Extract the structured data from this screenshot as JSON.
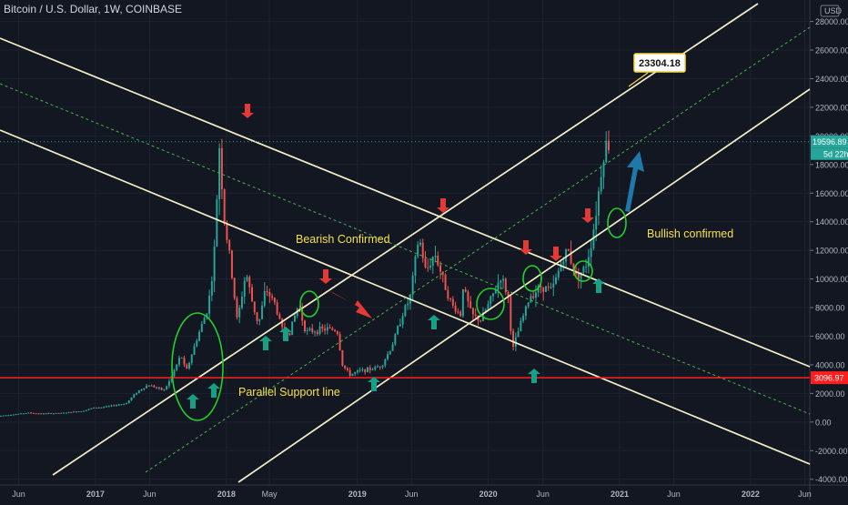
{
  "header": {
    "symbol_title": "Bitcoin / U.S. Dollar, 1W, COINBASE"
  },
  "currency_label": "USD",
  "colors": {
    "background": "#131722",
    "up": "#26a69a",
    "down": "#ef5350",
    "trendline": "#f5efc8",
    "dashed": "#4caf50",
    "support": "#ff1f1f",
    "annotation_text": "#f5e04a",
    "circle": "#22d02c",
    "arrow_up": "#16a085",
    "arrow_down": "#e53935",
    "callout_border": "#f5d442"
  },
  "chart_data": {
    "type": "candlestick",
    "title": "Bitcoin / U.S. Dollar, 1W, COINBASE",
    "y_axis": {
      "ticks": [
        28000,
        26000,
        24000,
        22000,
        20000,
        18000,
        16000,
        14000,
        12000,
        10000,
        8000,
        6000,
        4000,
        2000,
        0,
        -2000,
        -4000
      ],
      "tick_labels": [
        "28000.00",
        "26000.00",
        "24000.00",
        "22000.00",
        "20000.00",
        "18000.00",
        "16000.00",
        "14000.00",
        "12000.00",
        "10000.00",
        "8000.00",
        "6000.00",
        "4000.00",
        "2000.00",
        "0.00",
        "-2000.00",
        "-4000.00"
      ],
      "ylim": [
        -4400,
        29500
      ]
    },
    "x_axis": {
      "xlim": [
        "2016-04-10",
        "2022-06-15"
      ],
      "ticks": [
        {
          "date": "2016-06-01",
          "label": "Jun"
        },
        {
          "date": "2017-01-01",
          "label": "2017"
        },
        {
          "date": "2017-06-01",
          "label": "Jun"
        },
        {
          "date": "2018-01-01",
          "label": "2018"
        },
        {
          "date": "2018-05-01",
          "label": "May"
        },
        {
          "date": "2019-01-01",
          "label": "2019"
        },
        {
          "date": "2019-06-01",
          "label": "Jun"
        },
        {
          "date": "2020-01-01",
          "label": "2020"
        },
        {
          "date": "2020-06-01",
          "label": "Jun"
        },
        {
          "date": "2021-01-01",
          "label": "2021"
        },
        {
          "date": "2021-06-01",
          "label": "Jun"
        },
        {
          "date": "2022-01-01",
          "label": "2022"
        },
        {
          "date": "2022-06-01",
          "label": "Jun"
        }
      ]
    },
    "price_series": [
      [
        "2016-04-10",
        420
      ],
      [
        "2016-06-01",
        560
      ],
      [
        "2016-07-01",
        650
      ],
      [
        "2016-08-01",
        590
      ],
      [
        "2016-10-01",
        620
      ],
      [
        "2016-12-01",
        780
      ],
      [
        "2017-01-01",
        1000
      ],
      [
        "2017-02-01",
        1050
      ],
      [
        "2017-03-01",
        1180
      ],
      [
        "2017-04-01",
        1300
      ],
      [
        "2017-05-01",
        2100
      ],
      [
        "2017-06-01",
        2600
      ],
      [
        "2017-06-15",
        2500
      ],
      [
        "2017-07-15",
        2200
      ],
      [
        "2017-08-01",
        2900
      ],
      [
        "2017-09-01",
        4700
      ],
      [
        "2017-09-15",
        3500
      ],
      [
        "2017-10-15",
        5800
      ],
      [
        "2017-11-15",
        8000
      ],
      [
        "2017-12-01",
        11000
      ],
      [
        "2017-12-17",
        19300
      ],
      [
        "2017-12-31",
        14000
      ],
      [
        "2018-01-15",
        11500
      ],
      [
        "2018-02-05",
        7000
      ],
      [
        "2018-03-01",
        10500
      ],
      [
        "2018-03-20",
        8200
      ],
      [
        "2018-04-05",
        6800
      ],
      [
        "2018-04-25",
        9300
      ],
      [
        "2018-05-20",
        8300
      ],
      [
        "2018-06-10",
        6500
      ],
      [
        "2018-07-01",
        6300
      ],
      [
        "2018-07-25",
        8200
      ],
      [
        "2018-08-15",
        6300
      ],
      [
        "2018-09-10",
        6400
      ],
      [
        "2018-10-15",
        6500
      ],
      [
        "2018-11-10",
        6400
      ],
      [
        "2018-11-25",
        4000
      ],
      [
        "2018-12-15",
        3300
      ],
      [
        "2019-01-15",
        3600
      ],
      [
        "2019-02-15",
        3700
      ],
      [
        "2019-03-15",
        4000
      ],
      [
        "2019-04-10",
        5200
      ],
      [
        "2019-05-15",
        7800
      ],
      [
        "2019-06-01",
        8600
      ],
      [
        "2019-06-26",
        13000
      ],
      [
        "2019-07-15",
        10500
      ],
      [
        "2019-08-10",
        11800
      ],
      [
        "2019-09-01",
        10000
      ],
      [
        "2019-09-25",
        8200
      ],
      [
        "2019-10-20",
        7500
      ],
      [
        "2019-10-27",
        9500
      ],
      [
        "2019-11-20",
        7500
      ],
      [
        "2019-12-15",
        7100
      ],
      [
        "2020-01-15",
        8700
      ],
      [
        "2020-02-10",
        10200
      ],
      [
        "2020-03-01",
        8700
      ],
      [
        "2020-03-13",
        5000
      ],
      [
        "2020-04-01",
        6600
      ],
      [
        "2020-05-01",
        8800
      ],
      [
        "2020-06-01",
        9500
      ],
      [
        "2020-07-01",
        9200
      ],
      [
        "2020-08-01",
        11500
      ],
      [
        "2020-08-15",
        12000
      ],
      [
        "2020-09-05",
        10200
      ],
      [
        "2020-10-01",
        10700
      ],
      [
        "2020-10-21",
        12800
      ],
      [
        "2020-11-05",
        15500
      ],
      [
        "2020-11-20",
        18500
      ],
      [
        "2020-11-30",
        19500
      ],
      [
        "2020-12-05",
        19300
      ]
    ],
    "last_price_label": "19596.89",
    "countdown_label": "5d 22h",
    "support_level_label": "3096.97",
    "callout_value": "23304.18",
    "annotations": [
      "Bearish Confirmed",
      "Bullish confirmed",
      "Parallel  Support line"
    ]
  }
}
